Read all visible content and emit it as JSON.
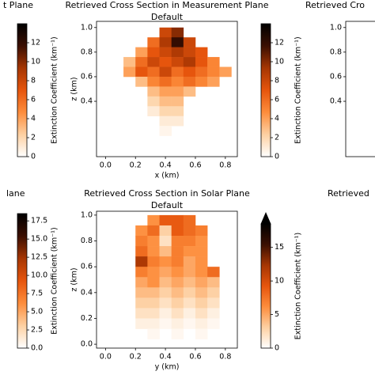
{
  "chart_data": [
    {
      "type": "heatmap",
      "title": "Retrieved Cross Section in Measurement Plane",
      "subtitle": "Default",
      "xlabel": "x (km)",
      "ylabel": "z (km)",
      "clabel": "Extinction Coefficient (km⁻¹)",
      "xlim": [
        -0.06,
        0.88
      ],
      "ylim": [
        -0.05,
        1.05
      ],
      "xticks": [
        {
          "value": 0,
          "label": "0.0"
        },
        0.2,
        0.4,
        0.6,
        0.8
      ],
      "yticks": [
        0.4,
        0.6,
        0.8,
        {
          "value": 1,
          "label": "1.0"
        }
      ],
      "clim": [
        0,
        14
      ],
      "cticks": [
        0,
        2,
        4,
        6,
        8,
        10,
        12
      ],
      "colors": [
        "#ffffff",
        "#fdd0a2",
        "#fd8d3c",
        "#e6550d",
        "#a63603",
        "#3b0f02",
        "#000000"
      ],
      "x": [
        0.16,
        0.24,
        0.32,
        0.4,
        0.48,
        0.56,
        0.64,
        0.72,
        0.8
      ],
      "y": [
        0.96,
        0.88,
        0.8,
        0.72,
        0.64,
        0.56,
        0.48,
        0.4,
        0.32,
        0.24,
        0.16
      ],
      "values": [
        [
          null,
          null,
          null,
          8,
          10,
          null,
          null,
          null,
          null
        ],
        [
          null,
          null,
          6,
          9,
          12,
          8,
          null,
          null,
          null
        ],
        [
          null,
          4,
          7,
          8,
          9,
          8,
          7,
          null,
          null
        ],
        [
          3,
          6,
          8,
          7,
          8,
          9,
          7,
          5,
          null
        ],
        [
          4,
          7,
          6,
          8,
          6,
          7,
          6,
          5,
          4
        ],
        [
          null,
          3,
          5,
          6,
          5,
          6,
          5,
          4,
          null
        ],
        [
          null,
          null,
          3,
          4,
          4,
          3,
          null,
          null,
          null
        ],
        [
          null,
          null,
          2,
          3,
          3,
          null,
          null,
          null,
          null
        ],
        [
          null,
          null,
          1,
          2,
          2,
          null,
          null,
          null,
          null
        ],
        [
          null,
          null,
          null,
          1,
          1,
          null,
          null,
          null,
          null
        ],
        [
          null,
          null,
          null,
          0.5,
          null,
          null,
          null,
          null,
          null
        ]
      ]
    },
    {
      "type": "heatmap",
      "title": "Retrieved Cross Section in Solar Plane",
      "subtitle": "Default",
      "xlabel": "y (km)",
      "ylabel": "z (km)",
      "clabel": "Extinction Coefficient (km⁻¹)",
      "xlim": [
        -0.06,
        0.88
      ],
      "ylim": [
        -0.03,
        1.03
      ],
      "xticks": [
        {
          "value": 0,
          "label": "0.0"
        },
        0.2,
        0.4,
        0.6,
        0.8
      ],
      "yticks": [
        {
          "value": 0,
          "label": "0.0"
        },
        0.2,
        0.4,
        0.6,
        0.8,
        {
          "value": 1,
          "label": "1.0"
        }
      ],
      "clim": [
        0,
        18.5
      ],
      "cticks": [
        0,
        5,
        10,
        15
      ],
      "extend": "max",
      "colors": [
        "#ffffff",
        "#fdd0a2",
        "#fd8d3c",
        "#e6550d",
        "#a63603",
        "#3b0f02",
        "#000000"
      ],
      "x": [
        0.24,
        0.32,
        0.4,
        0.48,
        0.56,
        0.64,
        0.72
      ],
      "y": [
        0.96,
        0.88,
        0.8,
        0.72,
        0.64,
        0.56,
        0.48,
        0.4,
        0.32,
        0.24,
        0.16,
        0.08
      ],
      "values": [
        [
          null,
          6,
          9,
          9,
          8,
          null,
          null
        ],
        [
          6,
          8,
          3,
          9,
          8,
          7,
          null
        ],
        [
          7,
          6,
          2,
          7,
          7,
          6,
          null
        ],
        [
          8,
          6,
          4,
          7,
          6,
          6,
          null
        ],
        [
          12,
          7,
          6,
          7,
          5,
          6,
          null
        ],
        [
          7,
          6,
          5,
          6,
          5,
          6,
          8
        ],
        [
          5,
          6,
          4,
          5,
          4,
          5,
          4
        ],
        [
          4,
          4,
          3,
          4,
          3,
          4,
          3
        ],
        [
          3,
          3,
          2,
          3,
          2,
          3,
          2
        ],
        [
          2,
          2,
          1,
          2,
          1,
          2,
          1
        ],
        [
          1,
          1,
          0.5,
          1,
          0.5,
          1,
          0.5
        ],
        [
          null,
          0.5,
          null,
          0.5,
          null,
          0.5,
          null
        ]
      ]
    },
    {
      "type": "colorbar",
      "title": "t Plane",
      "clabel": "Extinction Coefficient (km⁻¹)",
      "clim": [
        0,
        14
      ],
      "cticks": [
        0,
        2,
        4,
        6,
        8,
        10,
        12
      ],
      "colors": [
        "#ffffff",
        "#fdd0a2",
        "#fd8d3c",
        "#e6550d",
        "#a63603",
        "#3b0f02",
        "#000000"
      ]
    },
    {
      "type": "colorbar",
      "title": "lane",
      "clabel": "Extinction Coefficient (km⁻¹)",
      "clim": [
        0,
        18.5
      ],
      "cticks": [
        {
          "value": 0,
          "label": "0.0"
        },
        2.5,
        {
          "value": 5,
          "label": "5.0"
        },
        7.5,
        {
          "value": 10,
          "label": "10.0"
        },
        12.5,
        {
          "value": 15,
          "label": "15.0"
        },
        17.5
      ],
      "colors": [
        "#ffffff",
        "#fdd0a2",
        "#fd8d3c",
        "#e6550d",
        "#a63603",
        "#3b0f02",
        "#000000"
      ]
    },
    {
      "type": "partial",
      "title": "Retrieved Cro",
      "ylim": [
        -0.05,
        1.05
      ],
      "yticks": [
        0.4,
        0.6,
        0.8,
        {
          "value": 1,
          "label": "1.0"
        }
      ]
    },
    {
      "type": "partial",
      "title": "Retrieved"
    }
  ]
}
